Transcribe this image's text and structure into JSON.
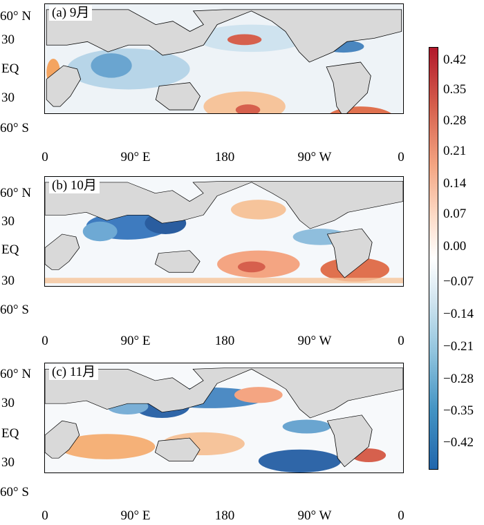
{
  "panels": [
    {
      "label": "(a)  9月"
    },
    {
      "label": "(b)  10月"
    },
    {
      "label": "(c)  11月"
    }
  ],
  "lat_labels": [
    "60° N",
    "30",
    "EQ",
    "30",
    "60° S"
  ],
  "lon_labels": [
    "0",
    "90° E",
    "180",
    "90° W",
    "0"
  ],
  "colorbar": {
    "ticks": [
      "0.42",
      "0.35",
      "0.28",
      "0.21",
      "0.14",
      "0.07",
      "0.00",
      "−0.07",
      "−0.14",
      "−0.21",
      "−0.28",
      "−0.35",
      "−0.42"
    ],
    "colors": {
      "max": "#b2182b",
      "mid": "#ffffff",
      "min": "#2166ac"
    }
  }
}
